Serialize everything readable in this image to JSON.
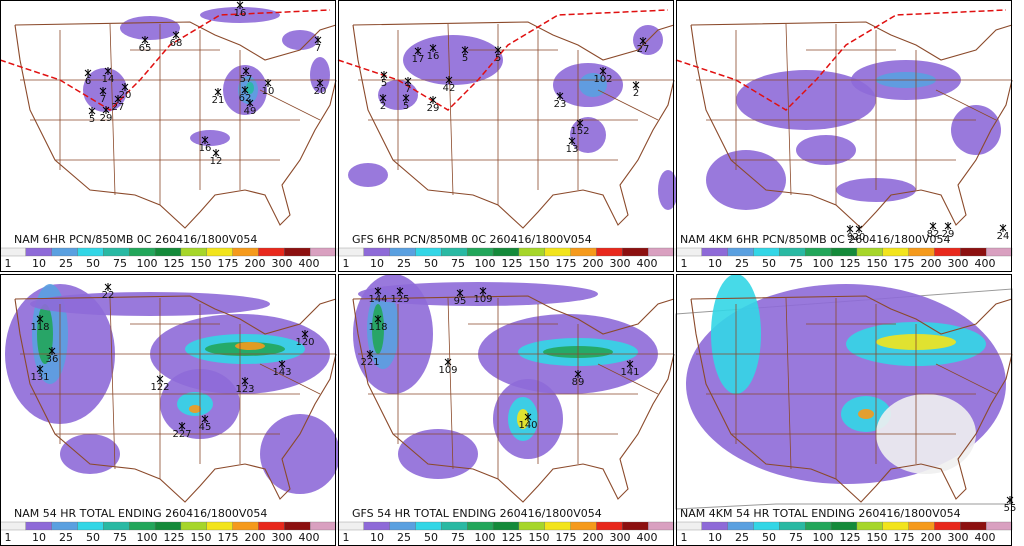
{
  "panels": [
    {
      "title": "NAM 6HR PCN/850MB 0C 260416/1800V054",
      "station_labels": [
        65,
        68,
        16,
        7,
        6,
        14,
        20,
        7,
        27,
        29,
        5,
        21,
        57,
        62,
        10,
        49,
        20,
        16,
        12
      ]
    },
    {
      "title": "GFS 6HR PCN/850MB 0C 260416/1800V054",
      "station_labels": [
        17,
        16,
        5,
        5,
        27,
        5,
        7,
        42,
        2,
        5,
        29,
        23,
        102,
        2,
        152,
        13
      ]
    },
    {
      "title": "NAM 4KM 6HR PCN/850MB 0C 260416/1800V054",
      "station_labels": [
        9,
        20,
        82,
        29,
        24
      ]
    },
    {
      "title": "NAM 54 HR TOTAL ENDING 260416/1800V054",
      "station_labels": [
        22,
        118,
        36,
        131,
        122,
        123,
        143,
        120,
        227,
        45
      ]
    },
    {
      "title": "GFS 54 HR TOTAL ENDING 260416/1800V054",
      "station_labels": [
        144,
        125,
        95,
        109,
        118,
        221,
        109,
        141,
        89,
        140
      ]
    },
    {
      "title": "NAM 4KM 54 HR TOTAL ENDING 260416/1800V054",
      "station_labels": [
        55
      ]
    }
  ],
  "colorbar": {
    "labels": [
      1,
      10,
      25,
      50,
      75,
      100,
      125,
      150,
      175,
      200,
      300,
      400
    ],
    "colors": [
      "#f0f0f0",
      "#8e6ad8",
      "#5aa0e0",
      "#33d6e6",
      "#29b9a3",
      "#22a65a",
      "#148a3a",
      "#a6d62a",
      "#f2e41c",
      "#f59a1c",
      "#e8281c",
      "#8c1010",
      "#d9a0c0"
    ]
  }
}
